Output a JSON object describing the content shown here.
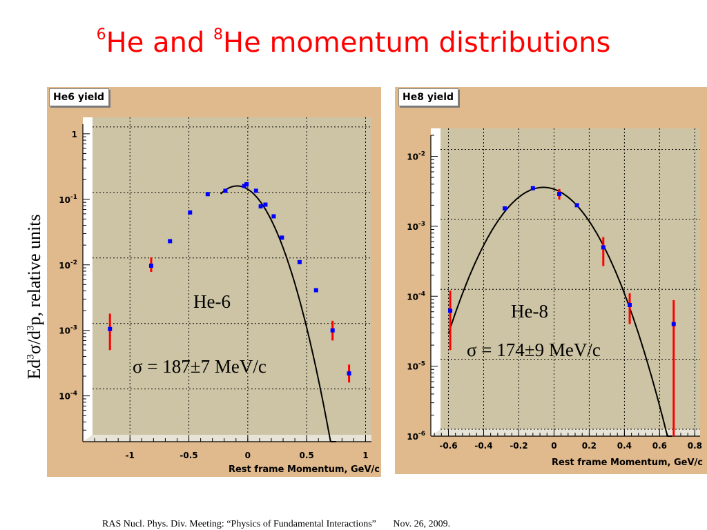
{
  "title": {
    "sup1": "6",
    "part1": "He and ",
    "sup2": "8",
    "part2": "He momentum distributions"
  },
  "ylabel": {
    "p1": "Ed",
    "s1": "3",
    "p2": "σ/d",
    "s2": "3",
    "p3": "p, relative units"
  },
  "footer": "RAS Nucl. Phys. Div. Meeting: “Physics of Fundamental Interactions”       Nov. 26, 2009.",
  "colors": {
    "panel_bg": "#e0b98c",
    "plot_bg": "#cdc4a5",
    "point": "#0000ff",
    "error_bar": "#ff0000",
    "fit_line": "#000000"
  },
  "panels": [
    {
      "frame_title": "He6 yield",
      "label": "He-6",
      "sigma": "σ = 187±7 MeV/c",
      "xlabel": "Rest frame Momentum, GeV/c"
    },
    {
      "frame_title": "He8 yield",
      "label": "He-8",
      "sigma": "σ = 174±9 MeV/c",
      "xlabel": "Rest frame Momentum, GeV/c"
    }
  ],
  "chart_data": [
    {
      "type": "scatter",
      "title": "He6 yield",
      "xlabel": "Rest frame Momentum, GeV/c",
      "ylabel": "Ed3σ/d3p, relative units",
      "yscale": "log",
      "xlim": [
        -1.4,
        1.05
      ],
      "ylim": [
        2e-05,
        1.4
      ],
      "xticks": [
        -1,
        -0.5,
        0,
        0.5,
        1
      ],
      "xtick_labels": [
        "-1",
        "-0.5",
        "0",
        "0.5",
        "1"
      ],
      "yticks": [
        0.0001,
        0.001,
        0.01,
        0.1,
        1
      ],
      "ytick_labels": [
        [
          "10",
          "-4"
        ],
        [
          "10",
          "-3"
        ],
        [
          "10",
          "-2"
        ],
        [
          "10",
          "-1"
        ],
        [
          "1",
          ""
        ]
      ],
      "grid": true,
      "annotations": [
        "He-6",
        "σ = 187±7 MeV/c"
      ],
      "fit": {
        "shape": "gaussian",
        "peak_y": 0.16,
        "mean": -0.09,
        "sigma": 0.187,
        "x_range": [
          -0.23,
          0.75
        ]
      },
      "points": [
        {
          "x": -1.17,
          "y": 0.00105,
          "ylow": 0.0005,
          "yhigh": 0.0018
        },
        {
          "x": -0.82,
          "y": 0.0097,
          "ylow": 0.0078,
          "yhigh": 0.013
        },
        {
          "x": -0.66,
          "y": 0.023
        },
        {
          "x": -0.49,
          "y": 0.063
        },
        {
          "x": -0.34,
          "y": 0.12
        },
        {
          "x": -0.19,
          "y": 0.135
        },
        {
          "x": -0.03,
          "y": 0.16
        },
        {
          "x": -0.01,
          "y": 0.17
        },
        {
          "x": 0.07,
          "y": 0.135
        },
        {
          "x": 0.11,
          "y": 0.078
        },
        {
          "x": 0.15,
          "y": 0.083
        },
        {
          "x": 0.22,
          "y": 0.055
        },
        {
          "x": 0.29,
          "y": 0.026
        },
        {
          "x": 0.44,
          "y": 0.011
        },
        {
          "x": 0.58,
          "y": 0.0041
        },
        {
          "x": 0.72,
          "y": 0.001,
          "ylow": 0.0007,
          "yhigh": 0.0014
        },
        {
          "x": 0.86,
          "y": 0.00022,
          "ylow": 0.00016,
          "yhigh": 0.0003
        }
      ]
    },
    {
      "type": "scatter",
      "title": "He8 yield",
      "xlabel": "Rest frame Momentum, GeV/c",
      "ylabel": "Ed3σ/d3p, relative units",
      "yscale": "log",
      "xlim": [
        -0.7,
        0.83
      ],
      "ylim": [
        1e-06,
        0.02
      ],
      "xticks": [
        -0.6,
        -0.4,
        -0.2,
        0,
        0.2,
        0.4,
        0.6,
        0.8
      ],
      "xtick_labels": [
        "-0.6",
        "-0.4",
        "-0.2",
        "0",
        "0.2",
        "0.4",
        "0.6",
        "0.8"
      ],
      "yticks": [
        1e-06,
        1e-05,
        0.0001,
        0.001,
        0.01
      ],
      "ytick_labels": [
        [
          "10",
          "-6"
        ],
        [
          "10",
          "-5"
        ],
        [
          "10",
          "-4"
        ],
        [
          "10",
          "-3"
        ],
        [
          "10",
          "-2"
        ]
      ],
      "grid": true,
      "annotations": [
        "He-8",
        "σ = 174±9 MeV/c"
      ],
      "fit": {
        "shape": "gaussian",
        "peak_y": 0.0036,
        "mean": -0.06,
        "sigma": 0.174,
        "x_range": [
          -0.6,
          0.67
        ]
      },
      "points": [
        {
          "x": -0.59,
          "y": 6.2e-05,
          "ylow": 1.7e-05,
          "yhigh": 0.00012
        },
        {
          "x": -0.28,
          "y": 0.0018
        },
        {
          "x": -0.12,
          "y": 0.0035
        },
        {
          "x": 0.03,
          "y": 0.0029,
          "ylow": 0.0024,
          "yhigh": 0.0034
        },
        {
          "x": 0.13,
          "y": 0.002
        },
        {
          "x": 0.28,
          "y": 0.0005,
          "ylow": 0.00027,
          "yhigh": 0.0007
        },
        {
          "x": 0.43,
          "y": 7.5e-05,
          "ylow": 4e-05,
          "yhigh": 0.00011
        },
        {
          "x": 0.68,
          "y": 4e-05,
          "ylow": 1e-06,
          "yhigh": 8.8e-05
        }
      ]
    }
  ]
}
